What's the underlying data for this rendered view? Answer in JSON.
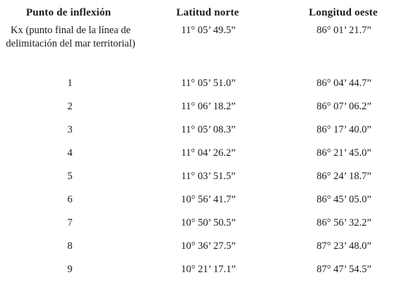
{
  "table": {
    "headers": [
      "Punto de inflexión",
      "Latitud norte",
      "Longitud oeste"
    ],
    "rows": [
      [
        "Kx (punto final de la línea de delimitación del mar territorial)",
        "11° 05’ 49.5”",
        "86° 01’ 21.7”"
      ],
      [
        "1",
        "11° 05’ 51.0”",
        "86° 04’ 44.7”"
      ],
      [
        "2",
        "11° 06’ 18.2”",
        "86° 07’ 06.2”"
      ],
      [
        "3",
        "11° 05’ 08.3”",
        "86° 17’ 40.0”"
      ],
      [
        "4",
        "11° 04’ 26.2”",
        "86° 21’ 45.0”"
      ],
      [
        "5",
        "11° 03’ 51.5”",
        "86° 24’ 18.7”"
      ],
      [
        "6",
        "10° 56’ 41.7”",
        "86° 45’ 05.0”"
      ],
      [
        "7",
        "10° 50’ 50.5”",
        "86° 56’ 32.2”"
      ],
      [
        "8",
        "10° 36’ 27.5”",
        "87° 23’ 48.0”"
      ],
      [
        "9",
        "10° 21’ 17.1”",
        "87° 47’ 54.5”"
      ]
    ]
  }
}
